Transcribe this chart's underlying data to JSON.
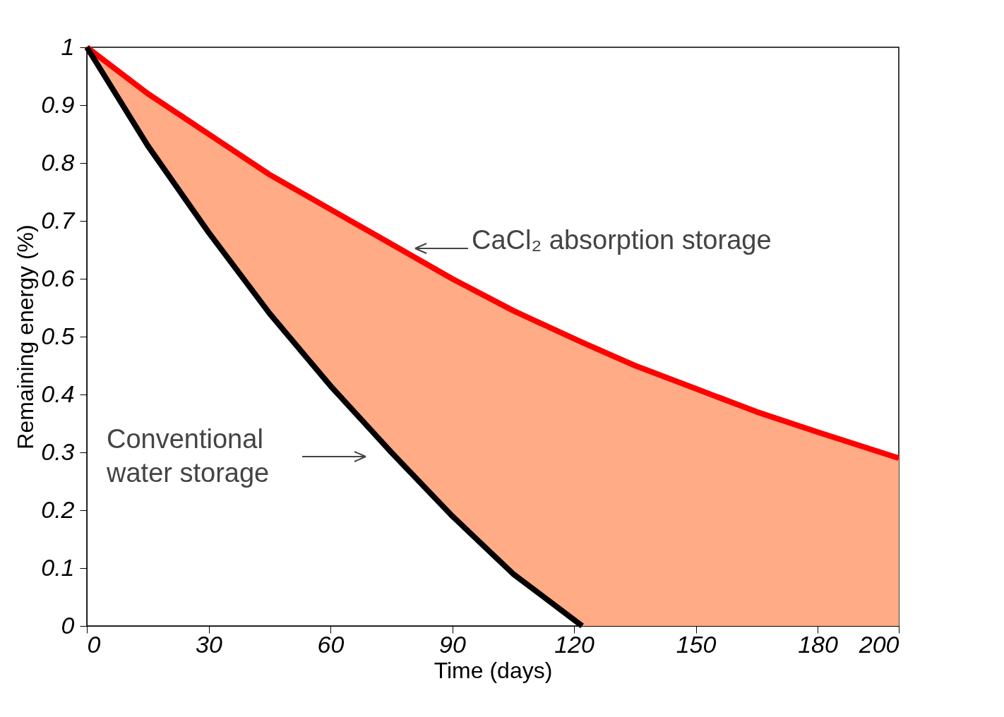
{
  "chart_data": {
    "type": "line",
    "xlabel": "Time (days)",
    "ylabel": "Remaining energy (%)",
    "xlim": [
      0,
      200
    ],
    "xticks": [
      0,
      30,
      60,
      90,
      120,
      150,
      180,
      200
    ],
    "ylim": [
      0,
      1
    ],
    "yticks": [
      0,
      0.1,
      0.2,
      0.3,
      0.4,
      0.5,
      0.6,
      0.7,
      0.8,
      0.9,
      1
    ],
    "grid": false,
    "line_style": "solid",
    "series": [
      {
        "color": "#ff0000",
        "x": [
          0,
          15,
          30,
          45,
          60,
          75,
          90,
          105,
          122,
          135,
          150,
          165,
          180,
          200
        ],
        "values": [
          1,
          0.92,
          0.85,
          0.78,
          0.72,
          0.66,
          0.6,
          0.545,
          0.49,
          0.45,
          0.41,
          0.37,
          0.335,
          0.29
        ],
        "lower": [
          1,
          0.83,
          0.68,
          0.54,
          0.415,
          0.3,
          0.19,
          0.09,
          0,
          0,
          0,
          0,
          0,
          0
        ],
        "upper": [
          1,
          0.92,
          0.85,
          0.78,
          0.72,
          0.66,
          0.6,
          0.545,
          0.49,
          0.45,
          0.41,
          0.37,
          0.335,
          0.29
        ]
      },
      {
        "color": "#000000",
        "x": [
          0,
          15,
          30,
          45,
          60,
          75,
          90,
          105,
          122
        ],
        "values": [
          1,
          0.83,
          0.68,
          0.54,
          0.415,
          0.3,
          0.19,
          0.09,
          0
        ]
      }
    ],
    "annotations": [
      "CaCl₂ absorption storage",
      "Conventional\nwater storage"
    ]
  }
}
